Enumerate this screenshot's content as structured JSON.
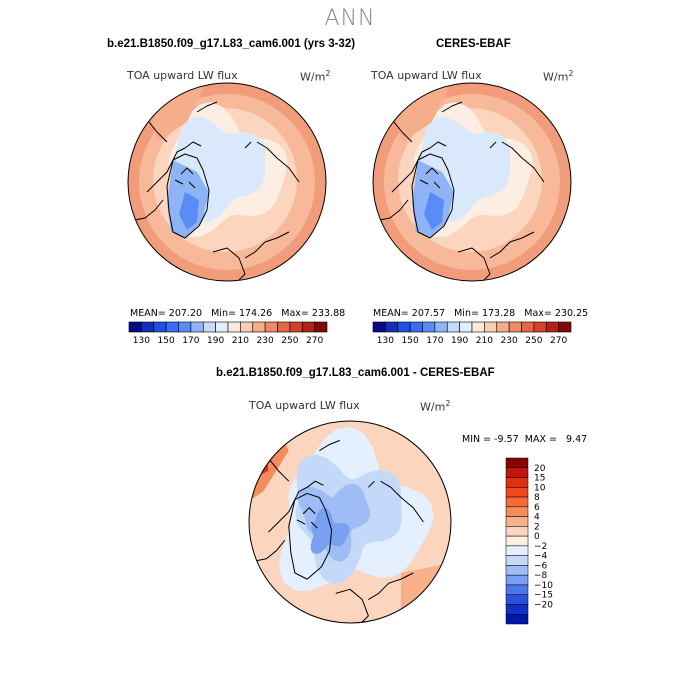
{
  "title": "ANN",
  "panels": [
    {
      "case": "b.e21.B1850.f09_g17.L83_cam6.001 (yrs 3-32)",
      "variable": "TOA upward LW flux",
      "units": "W/m",
      "units_exp": "2",
      "mean_label": "MEAN=",
      "mean": "207.20",
      "min_label": "Min=",
      "min": "174.26",
      "max_label": "Max=",
      "max": "233.88"
    },
    {
      "case": "CERES-EBAF",
      "variable": "TOA upward LW flux",
      "units": "W/m",
      "units_exp": "2",
      "mean_label": "MEAN=",
      "mean": "207.57",
      "min_label": "Min=",
      "min": "173.28",
      "max_label": "Max=",
      "max": "230.25"
    }
  ],
  "colorbar_top": {
    "ticks": [
      "130",
      "150",
      "170",
      "190",
      "210",
      "230",
      "250",
      "270"
    ],
    "colors": [
      "#08088a",
      "#1030b8",
      "#2050e0",
      "#3a6cf0",
      "#5a8cf5",
      "#8fb3f7",
      "#c4dbfb",
      "#e3eefd",
      "#fde9dd",
      "#f9cdb3",
      "#f5ad8a",
      "#ef8a66",
      "#e66545",
      "#d2412b",
      "#b02418",
      "#7e0a0a"
    ]
  },
  "diff_panel": {
    "case": "b.e21.B1850.f09_g17.L83_cam6.001 - CERES-EBAF",
    "variable": "TOA upward LW flux",
    "units": "W/m",
    "units_exp": "2",
    "min_label": "MIN =",
    "min": "-9.57",
    "max_label": "MAX =",
    "max": "9.47"
  },
  "colorbar_diff": {
    "labels": [
      "20",
      "15",
      "10",
      "8",
      "6",
      "4",
      "2",
      "0",
      "−2",
      "−4",
      "−6",
      "−8",
      "−10",
      "−15",
      "−20"
    ],
    "colors": [
      "#8b0000",
      "#c0160d",
      "#e03010",
      "#f04a1c",
      "#f56a3a",
      "#f58c5c",
      "#f8b088",
      "#fbd5bd",
      "#fdeee4",
      "#e4efff",
      "#c4d8fa",
      "#9ebdf6",
      "#7aa0f2",
      "#4d78ea",
      "#2a50e0",
      "#1030c8",
      "#0018a8"
    ]
  },
  "map_colors": {
    "ocean_warm": "#f7b999",
    "ocean_warmer": "#f19d7b",
    "cool_center": "#d9e9fb",
    "greenland": "#8fb3f7",
    "greenland_core": "#5a8cf5",
    "coast": "#000000"
  }
}
